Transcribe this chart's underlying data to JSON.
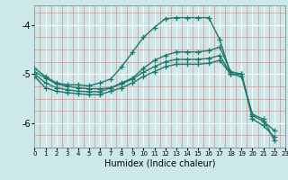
{
  "xlabel": "Humidex (Indice chaleur)",
  "background_color": "#cce8e8",
  "line_color": "#1a7a6e",
  "grid_major_color": "#ffffff",
  "grid_minor_color": "#e88888",
  "xlim": [
    0,
    23
  ],
  "ylim": [
    -6.5,
    -3.6
  ],
  "yticks": [
    -6,
    -5,
    -4
  ],
  "xticks": [
    0,
    1,
    2,
    3,
    4,
    5,
    6,
    7,
    8,
    9,
    10,
    11,
    12,
    13,
    14,
    15,
    16,
    17,
    18,
    19,
    20,
    21,
    22,
    23
  ],
  "series": [
    {
      "x": [
        0,
        1,
        2,
        3,
        4,
        5,
        6,
        7,
        8,
        9,
        10,
        11,
        12,
        13,
        14,
        15,
        16,
        17,
        18
      ],
      "y": [
        -4.88,
        -5.05,
        -5.18,
        -5.22,
        -5.22,
        -5.24,
        -5.18,
        -5.1,
        -4.85,
        -4.55,
        -4.25,
        -4.05,
        -3.87,
        -3.85,
        -3.85,
        -3.85,
        -3.85,
        -4.3,
        -5.0
      ]
    },
    {
      "x": [
        0,
        1,
        2,
        3,
        4,
        5,
        6,
        7,
        8,
        9,
        10,
        11,
        12,
        13,
        14,
        15,
        16,
        17,
        18,
        19,
        20,
        21,
        22
      ],
      "y": [
        -4.95,
        -5.08,
        -5.2,
        -5.25,
        -5.28,
        -5.3,
        -5.3,
        -5.28,
        -5.18,
        -5.08,
        -4.88,
        -4.72,
        -4.62,
        -4.55,
        -4.55,
        -4.55,
        -4.52,
        -4.45,
        -4.95,
        -5.0,
        -5.92,
        -6.05,
        -6.28
      ]
    },
    {
      "x": [
        0,
        1,
        2,
        3,
        4,
        5,
        6,
        7,
        8,
        9,
        10,
        11,
        12,
        13,
        14,
        15,
        16,
        17,
        18,
        19,
        20,
        21,
        22
      ],
      "y": [
        -5.0,
        -5.18,
        -5.28,
        -5.32,
        -5.35,
        -5.36,
        -5.36,
        -5.28,
        -5.2,
        -5.1,
        -4.96,
        -4.85,
        -4.75,
        -4.7,
        -4.7,
        -4.7,
        -4.68,
        -4.62,
        -5.0,
        -5.0,
        -5.85,
        -5.96,
        -6.15
      ]
    },
    {
      "x": [
        0,
        1,
        2,
        3,
        4,
        5,
        6,
        7,
        8,
        9,
        10,
        11,
        12,
        13,
        14,
        15,
        16,
        17,
        18,
        19,
        20,
        21,
        22
      ],
      "y": [
        -5.05,
        -5.28,
        -5.35,
        -5.38,
        -5.4,
        -5.42,
        -5.42,
        -5.35,
        -5.28,
        -5.18,
        -5.05,
        -4.95,
        -4.85,
        -4.8,
        -4.8,
        -4.8,
        -4.78,
        -4.72,
        -5.0,
        -5.05,
        -5.82,
        -5.92,
        -6.35
      ]
    }
  ]
}
